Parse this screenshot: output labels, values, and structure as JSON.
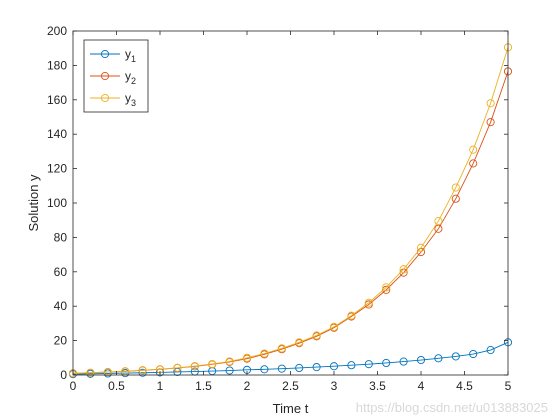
{
  "chart_data": {
    "type": "line",
    "xlabel": "Time t",
    "ylabel": "Solution y",
    "xlim": [
      0,
      5
    ],
    "ylim": [
      0,
      200
    ],
    "xticks": [
      "0",
      "0.5",
      "1",
      "1.5",
      "2",
      "2.5",
      "3",
      "3.5",
      "4",
      "4.5",
      "5"
    ],
    "yticks": [
      "0",
      "20",
      "40",
      "60",
      "80",
      "100",
      "120",
      "140",
      "160",
      "180",
      "200"
    ],
    "grid": false,
    "legend_position": "top-left",
    "marker": "circle",
    "series": [
      {
        "name": "y1",
        "name_base": "y",
        "name_sub": "1",
        "color": "#0072BD",
        "x": [
          0,
          0.2,
          0.4,
          0.6,
          0.8,
          1.0,
          1.2,
          1.4,
          1.6,
          1.8,
          2.0,
          2.2,
          2.4,
          2.6,
          2.8,
          3.0,
          3.2,
          3.4,
          3.6,
          3.8,
          4.0,
          4.2,
          4.4,
          4.6,
          4.8,
          5.0
        ],
        "values": [
          0.5,
          0.7,
          0.9,
          1.1,
          1.3,
          1.5,
          1.8,
          2.0,
          2.3,
          2.6,
          3.0,
          3.3,
          3.7,
          4.1,
          4.6,
          5.1,
          5.7,
          6.3,
          7.0,
          7.8,
          8.7,
          9.7,
          10.8,
          12.2,
          14.5,
          19.0
        ]
      },
      {
        "name": "y2",
        "name_base": "y",
        "name_sub": "2",
        "color": "#D95319",
        "x": [
          0,
          0.2,
          0.4,
          0.6,
          0.8,
          1.0,
          1.2,
          1.4,
          1.6,
          1.8,
          2.0,
          2.2,
          2.4,
          2.6,
          2.8,
          3.0,
          3.2,
          3.4,
          3.6,
          3.8,
          4.0,
          4.2,
          4.4,
          4.6,
          4.8,
          5.0
        ],
        "values": [
          1.0,
          1.3,
          1.7,
          2.1,
          2.7,
          3.3,
          4.1,
          5.0,
          6.2,
          7.6,
          9.5,
          12.0,
          15.0,
          18.5,
          22.5,
          27.5,
          34.0,
          41.0,
          49.5,
          59.5,
          71.5,
          85.0,
          102.5,
          123.0,
          147.0,
          176.5
        ]
      },
      {
        "name": "y3",
        "name_base": "y",
        "name_sub": "3",
        "color": "#EDB120",
        "x": [
          0,
          0.2,
          0.4,
          0.6,
          0.8,
          1.0,
          1.2,
          1.4,
          1.6,
          1.8,
          2.0,
          2.2,
          2.4,
          2.6,
          2.8,
          3.0,
          3.2,
          3.4,
          3.6,
          3.8,
          4.0,
          4.2,
          4.4,
          4.6,
          4.8,
          5.0
        ],
        "values": [
          1.0,
          1.3,
          1.7,
          2.2,
          2.8,
          3.4,
          4.2,
          5.2,
          6.4,
          7.9,
          10.0,
          12.5,
          15.5,
          19.0,
          23.0,
          28.0,
          34.5,
          42.0,
          51.0,
          61.5,
          74.0,
          89.5,
          109.0,
          131.0,
          158.0,
          190.5
        ]
      }
    ]
  },
  "watermark": "https://blog.csdn.net/u013883025"
}
